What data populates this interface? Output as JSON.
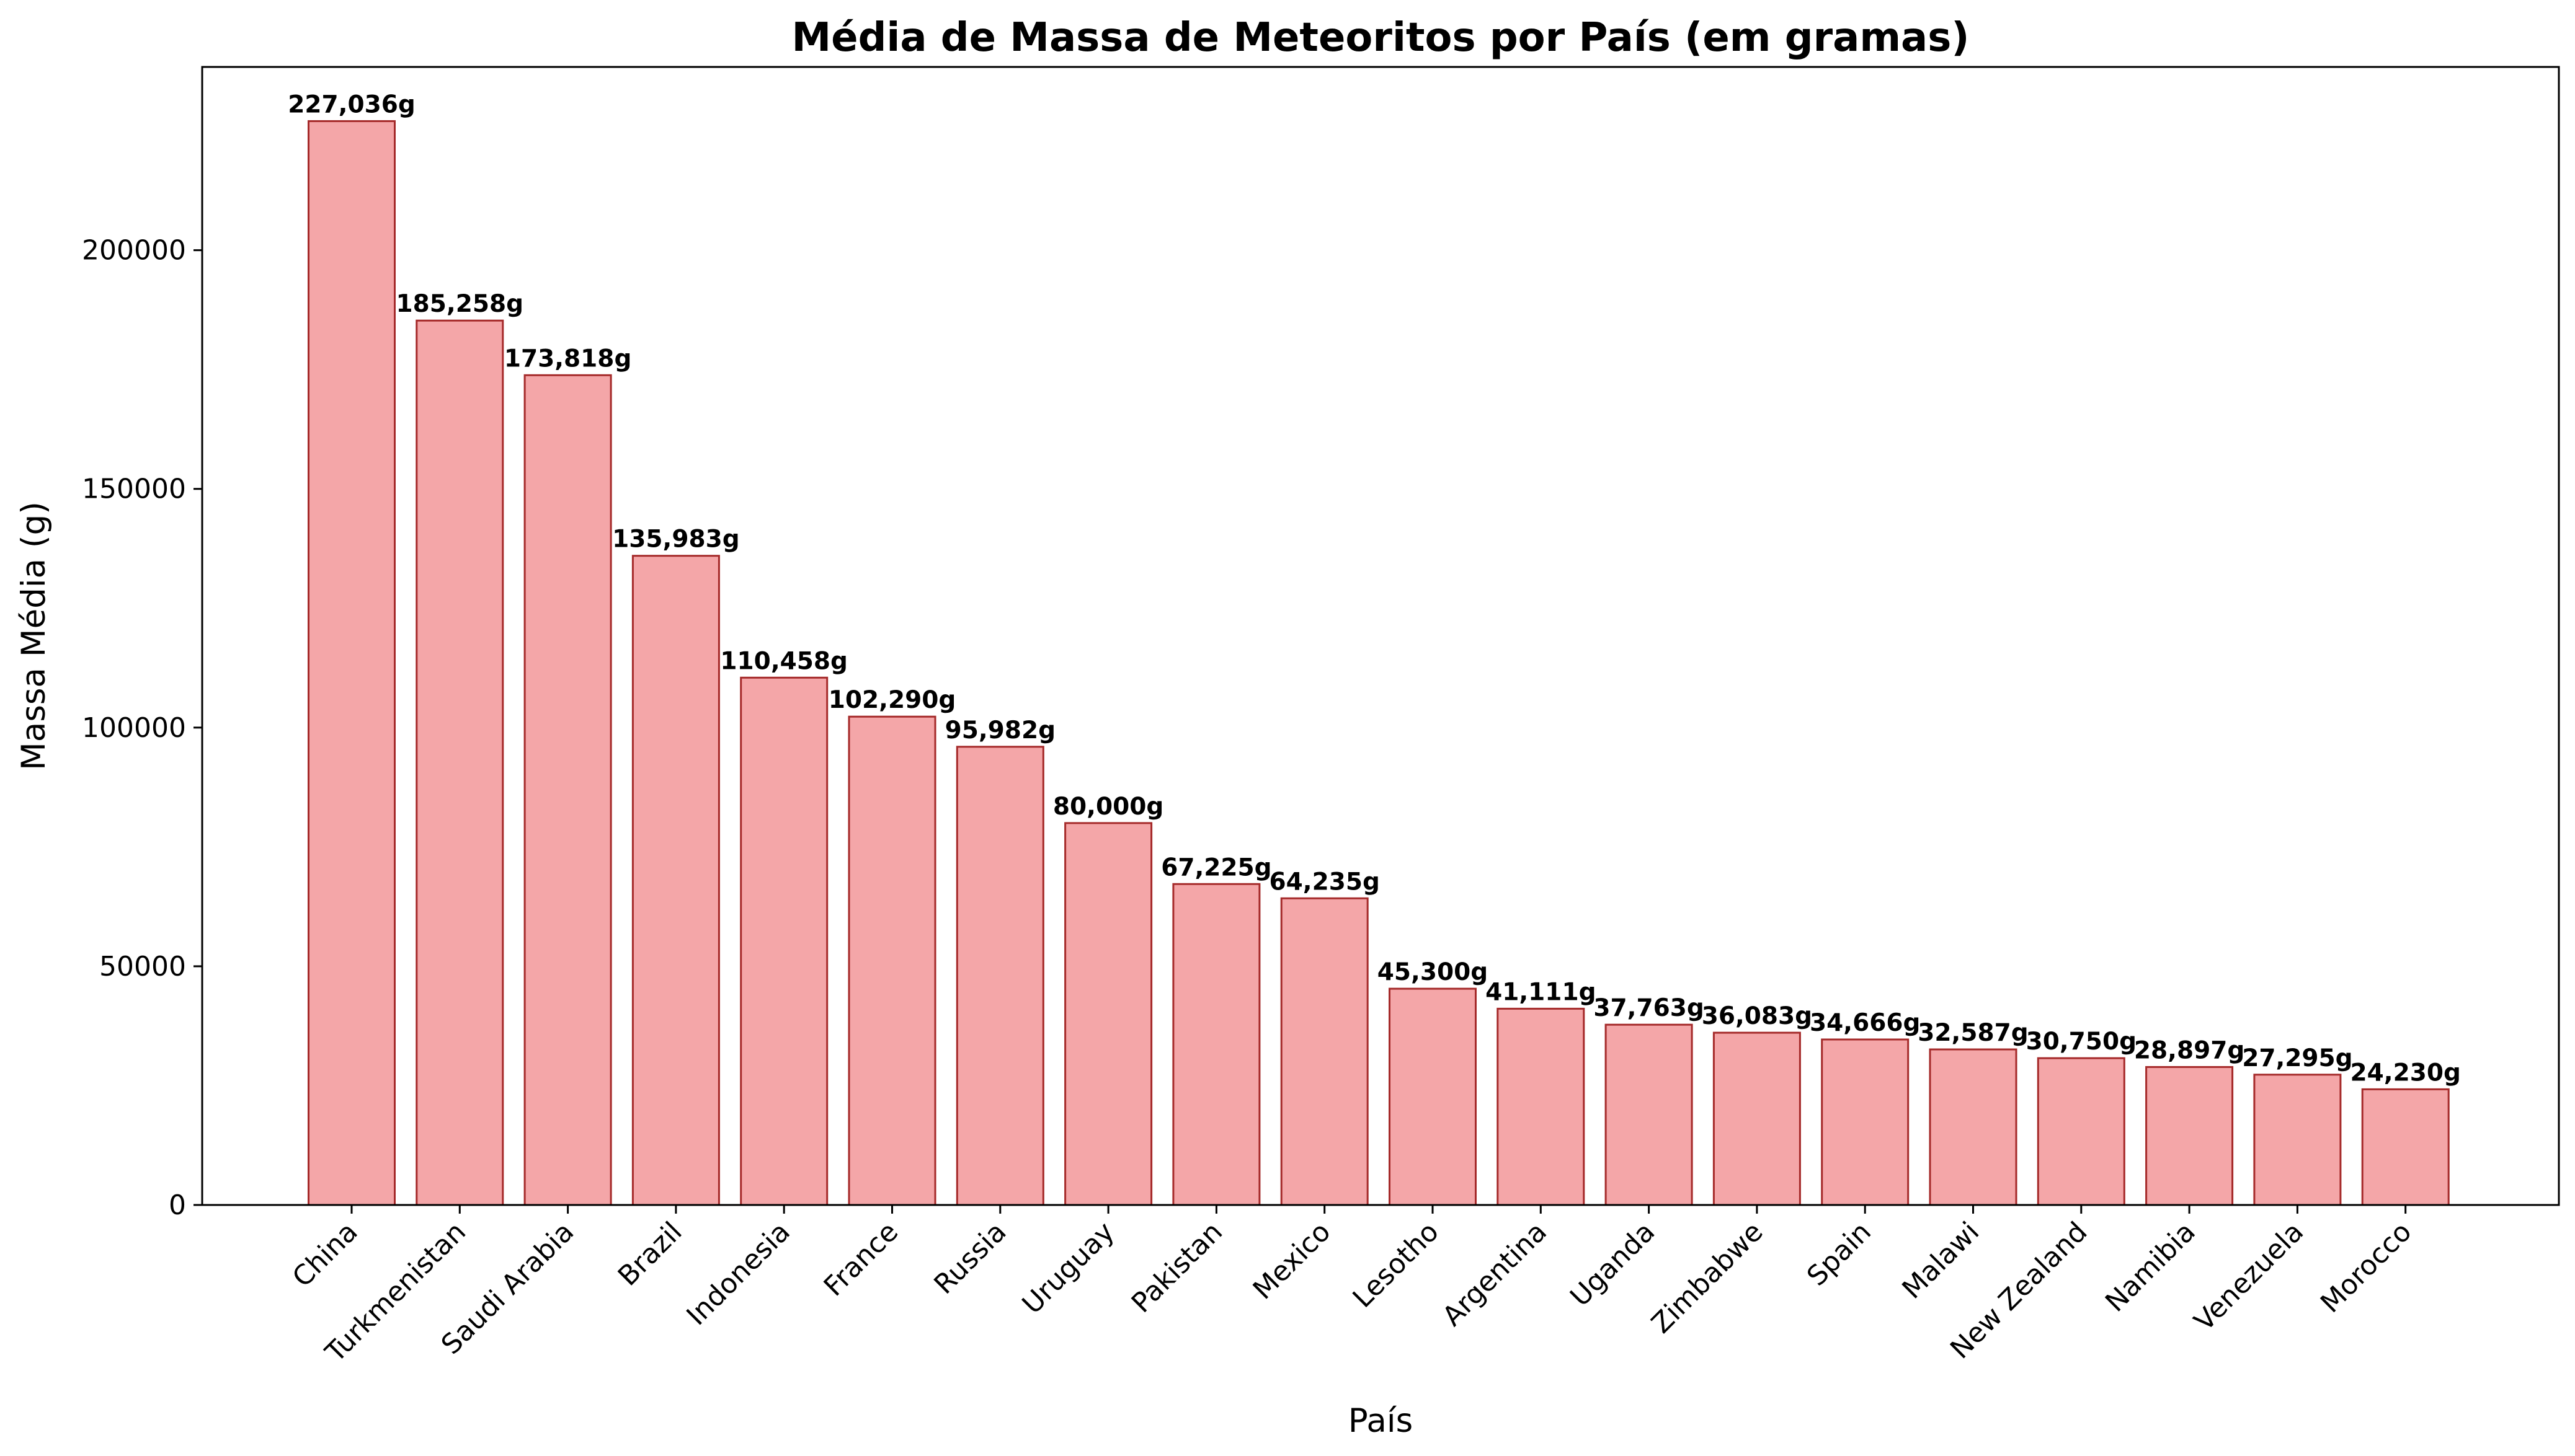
{
  "chart_data": {
    "type": "bar",
    "title": "Média de Massa de Meteoritos por País (em gramas)",
    "xlabel": "País",
    "ylabel": "Massa Média (g)",
    "categories": [
      "China",
      "Turkmenistan",
      "Saudi Arabia",
      "Brazil",
      "Indonesia",
      "France",
      "Russia",
      "Uruguay",
      "Pakistan",
      "Mexico",
      "Lesotho",
      "Argentina",
      "Uganda",
      "Zimbabwe",
      "Spain",
      "Malawi",
      "New Zealand",
      "Namibia",
      "Venezuela",
      "Morocco"
    ],
    "values": [
      227036,
      185258,
      173818,
      135983,
      110458,
      102290,
      95982,
      80000,
      67225,
      64235,
      45300,
      41111,
      37763,
      36083,
      34666,
      32587,
      30750,
      28897,
      27295,
      24230
    ],
    "data_labels": [
      "227,036g",
      "185,258g",
      "173,818g",
      "135,983g",
      "110,458g",
      "102,290g",
      "95,982g",
      "80,000g",
      "67,225g",
      "64,235g",
      "45,300g",
      "41,111g",
      "37,763g",
      "36,083g",
      "34,666g",
      "32,587g",
      "30,750g",
      "28,897g",
      "27,295g",
      "24,230g"
    ],
    "ylim": [
      0,
      238388
    ],
    "yticks": [
      0,
      50000,
      100000,
      150000,
      200000
    ],
    "ytick_labels": [
      "0",
      "50000",
      "100000",
      "150000",
      "200000"
    ],
    "grid": false,
    "bar_color": "#f4a6a8",
    "bar_edge_color": "#a52a2a"
  }
}
